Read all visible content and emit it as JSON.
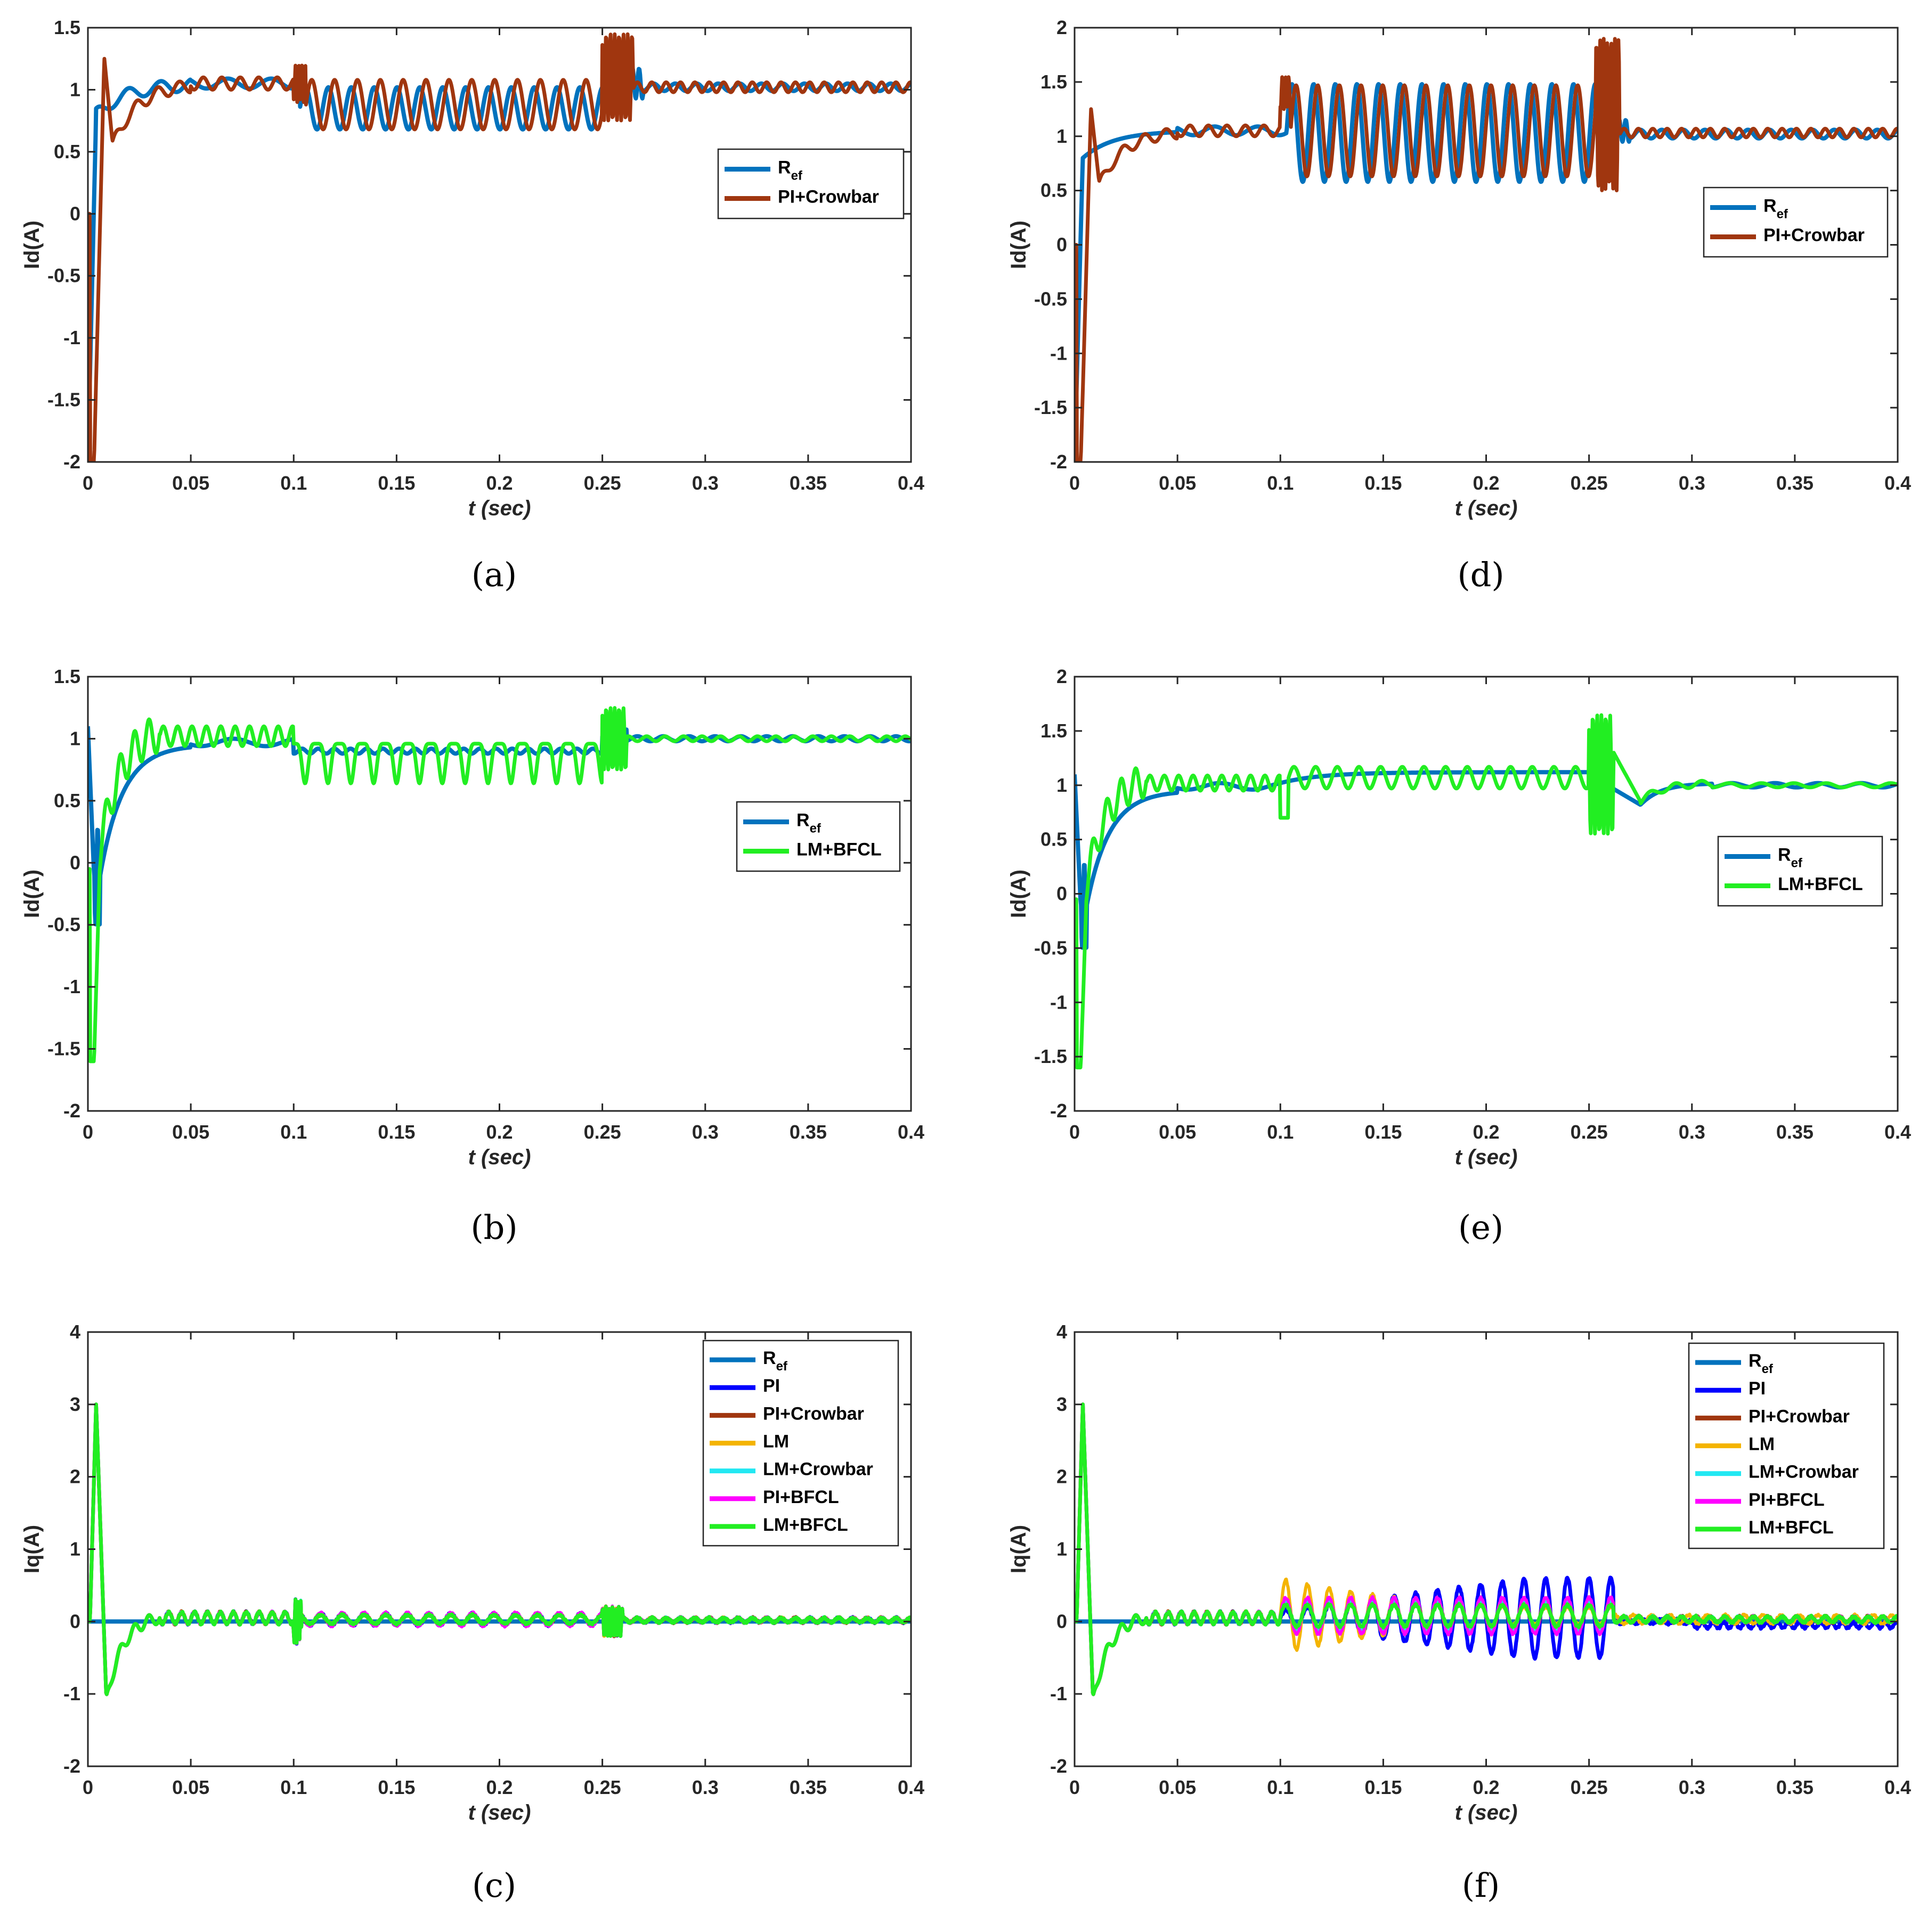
{
  "figure": {
    "colors": {
      "Ref": "#0072BD",
      "PI": "#0000FF",
      "PI+Crowbar": "#A0360F",
      "LM": "#F4B400",
      "LM+Crowbar": "#22E8F2",
      "PI+BFCL": "#FF00FF",
      "LM+BFCL": "#22EE22"
    }
  },
  "chart_data": [
    {
      "id": "a",
      "caption": "(a)",
      "type": "line",
      "title": "",
      "xlabel": "t (sec)",
      "ylabel": "Id(A)",
      "xlim": [
        0,
        0.4
      ],
      "ylim": [
        -2,
        1.5
      ],
      "xticks": [
        0,
        0.05,
        0.1,
        0.15,
        0.2,
        0.25,
        0.3,
        0.35,
        0.4
      ],
      "xtick_labels": [
        "0",
        "0.05",
        "0.1",
        "0.15",
        "0.2",
        "0.25",
        "0.3",
        "0.35",
        "0.4"
      ],
      "yticks": [
        -2,
        -1.5,
        -1,
        -0.5,
        0,
        0.5,
        1,
        1.5
      ],
      "ytick_labels": [
        "-2",
        "-1.5",
        "-1",
        "-0.5",
        "0",
        "0.5",
        "1",
        "1.5"
      ],
      "legend_location": "right",
      "series": [
        {
          "name": "Ref",
          "name_main": "R",
          "name_sub": "ef",
          "profile": "id_ref_a"
        },
        {
          "name": "PI+Crowbar",
          "name_main": "PI+Crowbar",
          "name_sub": "",
          "profile": "id_pic_a"
        }
      ]
    },
    {
      "id": "d",
      "caption": "(d)",
      "type": "line",
      "title": "",
      "xlabel": "t (sec)",
      "ylabel": "Id(A)",
      "xlim": [
        0,
        0.4
      ],
      "ylim": [
        -2,
        2
      ],
      "xticks": [
        0,
        0.05,
        0.1,
        0.15,
        0.2,
        0.25,
        0.3,
        0.35,
        0.4
      ],
      "xtick_labels": [
        "0",
        "0.05",
        "0.1",
        "0.15",
        "0.2",
        "0.25",
        "0.3",
        "0.35",
        "0.4"
      ],
      "yticks": [
        -2,
        -1.5,
        -1,
        -0.5,
        0,
        0.5,
        1,
        1.5,
        2
      ],
      "ytick_labels": [
        "-2",
        "-1.5",
        "-1",
        "-0.5",
        "0",
        "0.5",
        "1",
        "1.5",
        "2"
      ],
      "legend_location": "right",
      "series": [
        {
          "name": "Ref",
          "name_main": "R",
          "name_sub": "ef",
          "profile": "id_ref_d"
        },
        {
          "name": "PI+Crowbar",
          "name_main": "PI+Crowbar",
          "name_sub": "",
          "profile": "id_pic_d"
        }
      ]
    },
    {
      "id": "b",
      "caption": "(b)",
      "type": "line",
      "title": "",
      "xlabel": "t (sec)",
      "ylabel": "Id(A)",
      "xlim": [
        0,
        0.4
      ],
      "ylim": [
        -2,
        1.5
      ],
      "xticks": [
        0,
        0.05,
        0.1,
        0.15,
        0.2,
        0.25,
        0.3,
        0.35,
        0.4
      ],
      "xtick_labels": [
        "0",
        "0.05",
        "0.1",
        "0.15",
        "0.2",
        "0.25",
        "0.3",
        "0.35",
        "0.4"
      ],
      "yticks": [
        -2,
        -1.5,
        -1,
        -0.5,
        0,
        0.5,
        1,
        1.5
      ],
      "ytick_labels": [
        "-2",
        "-1.5",
        "-1",
        "-0.5",
        "0",
        "0.5",
        "1",
        "1.5"
      ],
      "legend_location": "right",
      "series": [
        {
          "name": "Ref",
          "name_main": "R",
          "name_sub": "ef",
          "profile": "id_ref_b"
        },
        {
          "name": "LM+BFCL",
          "name_main": "LM+BFCL",
          "name_sub": "",
          "profile": "id_lmb_b"
        }
      ]
    },
    {
      "id": "e",
      "caption": "(e)",
      "type": "line",
      "title": "",
      "xlabel": "t (sec)",
      "ylabel": "Id(A)",
      "xlim": [
        0,
        0.4
      ],
      "ylim": [
        -2,
        2
      ],
      "xticks": [
        0,
        0.05,
        0.1,
        0.15,
        0.2,
        0.25,
        0.3,
        0.35,
        0.4
      ],
      "xtick_labels": [
        "0",
        "0.05",
        "0.1",
        "0.15",
        "0.2",
        "0.25",
        "0.3",
        "0.35",
        "0.4"
      ],
      "yticks": [
        -2,
        -1.5,
        -1,
        -0.5,
        0,
        0.5,
        1,
        1.5,
        2
      ],
      "ytick_labels": [
        "-2",
        "-1.5",
        "-1",
        "-0.5",
        "0",
        "0.5",
        "1",
        "1.5",
        "2"
      ],
      "legend_location": "right",
      "series": [
        {
          "name": "Ref",
          "name_main": "R",
          "name_sub": "ef",
          "profile": "id_ref_e"
        },
        {
          "name": "LM+BFCL",
          "name_main": "LM+BFCL",
          "name_sub": "",
          "profile": "id_lmb_e"
        }
      ]
    },
    {
      "id": "c",
      "caption": "(c)",
      "type": "line",
      "title": "",
      "xlabel": "t (sec)",
      "ylabel": "Iq(A)",
      "xlim": [
        0,
        0.4
      ],
      "ylim": [
        -2,
        4
      ],
      "xticks": [
        0,
        0.05,
        0.1,
        0.15,
        0.2,
        0.25,
        0.3,
        0.35,
        0.4
      ],
      "xtick_labels": [
        "0",
        "0.05",
        "0.1",
        "0.15",
        "0.2",
        "0.25",
        "0.3",
        "0.35",
        "0.4"
      ],
      "yticks": [
        -2,
        -1,
        0,
        1,
        2,
        3,
        4
      ],
      "ytick_labels": [
        "-2",
        "-1",
        "0",
        "1",
        "2",
        "3",
        "4"
      ],
      "legend_location": "top-right",
      "series": [
        {
          "name": "Ref",
          "name_main": "R",
          "name_sub": "ef",
          "profile": "iq_ref"
        },
        {
          "name": "PI",
          "name_main": "PI",
          "name_sub": "",
          "profile": "iq_c",
          "amp": 0.08
        },
        {
          "name": "PI+Crowbar",
          "name_main": "PI+Crowbar",
          "name_sub": "",
          "profile": "iq_c",
          "amp": 0.07
        },
        {
          "name": "LM",
          "name_main": "LM",
          "name_sub": "",
          "profile": "iq_c",
          "amp": 0.06
        },
        {
          "name": "LM+Crowbar",
          "name_main": "LM+Crowbar",
          "name_sub": "",
          "profile": "iq_c",
          "amp": 0.07
        },
        {
          "name": "PI+BFCL",
          "name_main": "PI+BFCL",
          "name_sub": "",
          "profile": "iq_c",
          "amp": 0.09
        },
        {
          "name": "LM+BFCL",
          "name_main": "LM+BFCL",
          "name_sub": "",
          "profile": "iq_c",
          "amp": 0.06
        }
      ]
    },
    {
      "id": "f",
      "caption": "(f)",
      "type": "line",
      "title": "",
      "xlabel": "t (sec)",
      "ylabel": "Iq(A)",
      "xlim": [
        0,
        0.4
      ],
      "ylim": [
        -2,
        4
      ],
      "xticks": [
        0,
        0.05,
        0.1,
        0.15,
        0.2,
        0.25,
        0.3,
        0.35,
        0.4
      ],
      "xtick_labels": [
        "0",
        "0.05",
        "0.1",
        "0.15",
        "0.2",
        "0.25",
        "0.3",
        "0.35",
        "0.4"
      ],
      "yticks": [
        -2,
        -1,
        0,
        1,
        2,
        3,
        4
      ],
      "ytick_labels": [
        "-2",
        "-1",
        "0",
        "1",
        "2",
        "3",
        "4"
      ],
      "legend_location": "top-right",
      "series": [
        {
          "name": "Ref",
          "name_main": "R",
          "name_sub": "ef",
          "profile": "iq_ref"
        },
        {
          "name": "PI",
          "name_main": "PI",
          "name_sub": "",
          "profile": "iq_f_pi"
        },
        {
          "name": "PI+Crowbar",
          "name_main": "PI+Crowbar",
          "name_sub": "",
          "profile": "iq_f",
          "amp": 0.22
        },
        {
          "name": "LM",
          "name_main": "LM",
          "name_sub": "",
          "profile": "iq_f_lm"
        },
        {
          "name": "LM+Crowbar",
          "name_main": "LM+Crowbar",
          "name_sub": "",
          "profile": "iq_f",
          "amp": 0.2
        },
        {
          "name": "PI+BFCL",
          "name_main": "PI+BFCL",
          "name_sub": "",
          "profile": "iq_f",
          "amp": 0.25
        },
        {
          "name": "LM+BFCL",
          "name_main": "LM+BFCL",
          "name_sub": "",
          "profile": "iq_f",
          "amp": 0.15
        }
      ]
    }
  ]
}
